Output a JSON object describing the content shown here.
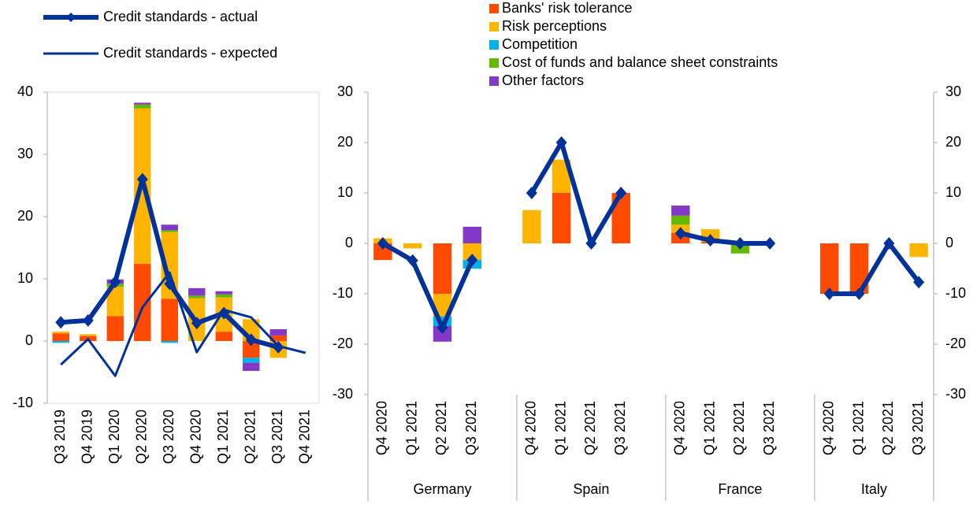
{
  "chart_data": [
    {
      "type": "bar",
      "categories": [
        "Q3 2019",
        "Q4 2019",
        "Q1 2020",
        "Q2 2020",
        "Q3 2020",
        "Q4 2020",
        "Q1 2021",
        "Q2 2021",
        "Q3 2021",
        "Q4 2021"
      ],
      "series": [
        {
          "values": [
            1.2,
            0.8,
            4.0,
            12.4,
            6.8,
            0,
            1.5,
            -2.7,
            0.9,
            null
          ]
        },
        {
          "values": [
            0.3,
            0.3,
            4.7,
            25.0,
            10.7,
            6.9,
            5.5,
            3.5,
            -2.7,
            null
          ]
        },
        {
          "values": [
            -0.3,
            0,
            0,
            0,
            -0.3,
            0,
            0,
            -0.8,
            0,
            null
          ]
        },
        {
          "values": [
            0,
            0,
            0.5,
            0.6,
            0.3,
            0.4,
            0.5,
            0,
            0,
            null
          ]
        },
        {
          "values": [
            0,
            0,
            0.7,
            0.3,
            0.9,
            1.2,
            0.5,
            -1.3,
            1.0,
            null
          ]
        }
      ],
      "lines": [
        {
          "name": "Credit standards - actual",
          "color": "#003299",
          "values": [
            3.0,
            3.3,
            9.5,
            26.0,
            9.2,
            2.9,
            4.5,
            0.2,
            -1.0,
            null
          ]
        },
        {
          "name": "Credit standards - expected",
          "color": "#003299",
          "values": [
            -3.8,
            0.3,
            -5.6,
            5.4,
            11.0,
            -1.8,
            5.0,
            3.8,
            -0.8,
            -1.9
          ]
        }
      ],
      "ylim": [
        -10,
        40
      ],
      "yticks": [
        -10,
        0,
        10,
        20,
        30,
        40
      ]
    },
    {
      "type": "bar",
      "categories": [
        "Q4 2020",
        "Q1 2021",
        "Q2 2021",
        "Q3 2021",
        null,
        "Q4 2020",
        "Q1 2021",
        "Q2 2021",
        "Q3 2021",
        null,
        "Q4 2020",
        "Q1 2021",
        "Q2 2021",
        "Q3 2021",
        null,
        "Q4 2020",
        "Q1 2021",
        "Q2 2021",
        "Q3 2021"
      ],
      "groups": [
        "Germany",
        "Spain",
        "France",
        "Italy"
      ],
      "series": [
        {
          "name": "Banks' risk tolerance",
          "color": "#ff4b00",
          "values": [
            -3.3,
            0,
            -10.0,
            0,
            null,
            0,
            10.0,
            0,
            10.0,
            null,
            2.1,
            0.3,
            0,
            0,
            null,
            -10.0,
            -10.0,
            0,
            0
          ]
        },
        {
          "name": "Risk perceptions",
          "color": "#ffb400",
          "values": [
            1.0,
            -1.0,
            -4.5,
            -3.3,
            null,
            6.6,
            6.6,
            0,
            0,
            null,
            1.6,
            2.5,
            0,
            0,
            null,
            0,
            0,
            0,
            -2.7
          ]
        },
        {
          "name": "Competition",
          "color": "#00b1ea",
          "values": [
            0,
            0,
            -1.9,
            -1.7,
            null,
            0,
            0,
            0,
            0,
            null,
            0,
            0,
            0,
            0,
            null,
            0,
            0,
            0,
            0
          ]
        },
        {
          "name": "Cost of funds and balance sheet constraints",
          "color": "#65b800",
          "values": [
            0,
            0,
            0,
            0,
            null,
            0,
            0,
            0,
            0,
            null,
            1.8,
            0,
            -2.0,
            0,
            null,
            0,
            0,
            0,
            0
          ]
        },
        {
          "name": "Other factors",
          "color": "#8139c6",
          "values": [
            0,
            0,
            -3.1,
            3.3,
            null,
            0,
            0,
            0,
            0,
            null,
            2.0,
            0,
            0,
            0,
            null,
            0,
            0,
            0,
            0
          ]
        }
      ],
      "lines": [
        {
          "values": [
            0,
            -3.4,
            -16.7,
            -3.3,
            null,
            10.0,
            20.0,
            0,
            10.0,
            null,
            2.0,
            0.6,
            0,
            0,
            null,
            -10.0,
            -10.0,
            0,
            -7.7
          ]
        }
      ],
      "ylim": [
        -30,
        30
      ],
      "yticks": [
        -30,
        -20,
        -10,
        0,
        10,
        20,
        30
      ],
      "y2lim": [
        -30,
        30
      ],
      "y2ticks": [
        -30,
        -20,
        -10,
        0,
        10,
        20,
        30
      ]
    }
  ]
}
